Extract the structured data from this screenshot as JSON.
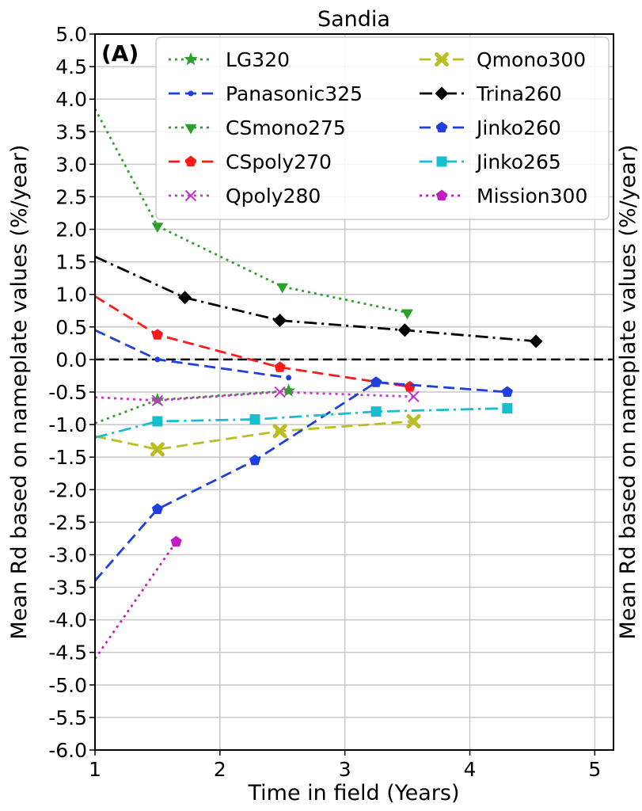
{
  "chart_data": {
    "type": "line",
    "title": "Sandia",
    "panel_label": "(A)",
    "xlabel": "Time in field (Years)",
    "ylabel": "Mean Rd based on nameplate values (%/year)",
    "ylabel_right": "Mean Rd based on nameplate values (%/year)",
    "xlim": [
      1,
      5.15
    ],
    "ylim": [
      -6.0,
      5.0
    ],
    "x_ticks": [
      1,
      2,
      3,
      4,
      5
    ],
    "x_tick_labels": [
      "1",
      "2",
      "3",
      "4",
      "5"
    ],
    "y_ticks": [
      -6.0,
      -5.5,
      -5.0,
      -4.5,
      -4.0,
      -3.5,
      -3.0,
      -2.5,
      -2.0,
      -1.5,
      -1.0,
      -0.5,
      0.0,
      0.5,
      1.0,
      1.5,
      2.0,
      2.5,
      3.0,
      3.5,
      4.0,
      4.5,
      5.0
    ],
    "y_tick_labels": [
      "-6.0",
      "-5.5",
      "-5.0",
      "-4.5",
      "-4.0",
      "-3.5",
      "-3.0",
      "-2.5",
      "-2.0",
      "-1.5",
      "-1.0",
      "-0.5",
      "0.0",
      "0.5",
      "1.0",
      "1.5",
      "2.0",
      "2.5",
      "3.0",
      "3.5",
      "4.0",
      "4.5",
      "5.0"
    ],
    "grid": true,
    "zero_line": {
      "y": 0.0,
      "style": "dashed",
      "color": "#000000"
    },
    "legend": {
      "position": "top-right",
      "columns": 2
    },
    "series": [
      {
        "name": "LG320",
        "color": "#2ca02c",
        "dash": "dotted",
        "marker": "star",
        "x": [
          1.0,
          1.5,
          2.55
        ],
        "y": [
          -0.98,
          -0.62,
          -0.48
        ],
        "markers": [
          false,
          true,
          true
        ]
      },
      {
        "name": "Panasonic325",
        "color": "#1f3fe0",
        "dash": "dashed",
        "marker": "point",
        "x": [
          1.0,
          1.5,
          2.55
        ],
        "y": [
          0.45,
          0.0,
          -0.28
        ],
        "markers": [
          false,
          true,
          true
        ]
      },
      {
        "name": "CSmono275",
        "color": "#2ca02c",
        "dash": "dotted",
        "marker": "triangle-down",
        "x": [
          1.0,
          1.5,
          2.5,
          3.5
        ],
        "y": [
          3.85,
          2.05,
          1.12,
          0.72
        ],
        "markers": [
          false,
          true,
          true,
          true
        ]
      },
      {
        "name": "CSpoly270",
        "color": "#ff1a1a",
        "dash": "dashed",
        "marker": "pentagon",
        "x": [
          1.0,
          1.5,
          2.48,
          3.52
        ],
        "y": [
          0.97,
          0.38,
          -0.12,
          -0.42
        ],
        "markers": [
          false,
          true,
          true,
          true
        ]
      },
      {
        "name": "Qpoly280",
        "color": "#cc33cc",
        "dash": "dotted",
        "marker": "x",
        "x": [
          1.0,
          1.5,
          2.48,
          3.55
        ],
        "y": [
          -0.58,
          -0.63,
          -0.5,
          -0.57
        ],
        "markers": [
          false,
          true,
          true,
          true
        ]
      },
      {
        "name": "Qmono300",
        "color": "#bcbd22",
        "dash": "dashed",
        "marker": "x-filled",
        "x": [
          1.0,
          1.5,
          2.48,
          3.55
        ],
        "y": [
          -1.18,
          -1.38,
          -1.1,
          -0.95
        ],
        "markers": [
          false,
          true,
          true,
          true
        ]
      },
      {
        "name": "Trina260",
        "color": "#000000",
        "dash": "dashdot",
        "marker": "diamond",
        "x": [
          1.0,
          1.72,
          2.48,
          3.48,
          4.53
        ],
        "y": [
          1.58,
          0.95,
          0.6,
          0.45,
          0.28
        ],
        "markers": [
          false,
          true,
          true,
          true,
          true
        ]
      },
      {
        "name": "Jinko260",
        "color": "#1f3fe0",
        "dash": "dashed",
        "marker": "pentagon",
        "x": [
          1.0,
          1.5,
          2.28,
          3.25,
          4.3
        ],
        "y": [
          -3.4,
          -2.3,
          -1.55,
          -0.35,
          -0.5
        ],
        "markers": [
          false,
          true,
          true,
          true,
          true
        ]
      },
      {
        "name": "Jinko265",
        "color": "#17becf",
        "dash": "dashdot",
        "marker": "square",
        "x": [
          1.0,
          1.5,
          2.28,
          3.25,
          4.3
        ],
        "y": [
          -1.2,
          -0.95,
          -0.92,
          -0.8,
          -0.75
        ],
        "markers": [
          false,
          true,
          true,
          true,
          true
        ]
      },
      {
        "name": "Mission300",
        "color": "#bf1fbf",
        "dash": "dotted",
        "marker": "pentagon",
        "x": [
          1.0,
          1.65
        ],
        "y": [
          -4.6,
          -2.8
        ],
        "markers": [
          false,
          true
        ]
      }
    ]
  }
}
